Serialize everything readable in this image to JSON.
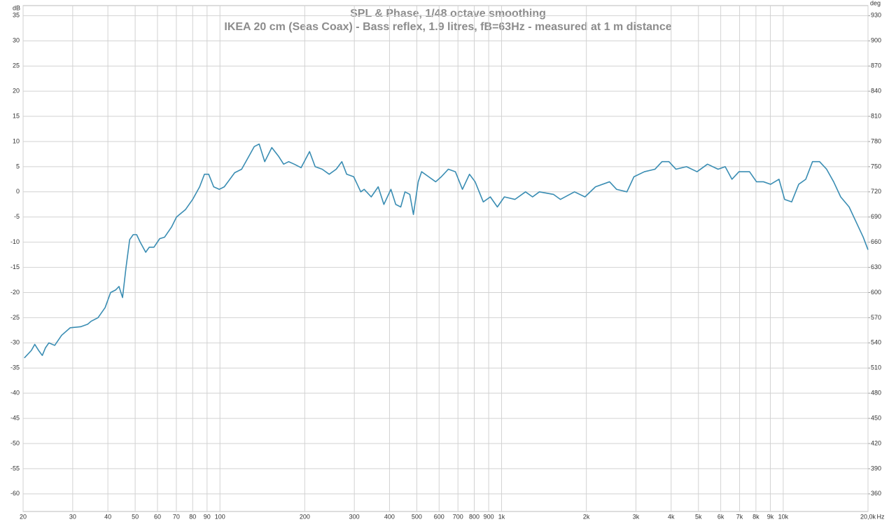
{
  "chart_data": {
    "type": "line",
    "title": "SPL & Phase, 1/48 octave smoothing",
    "subtitle": "IKEA 20 cm (Seas Coax) - Bass reflex, 1.9 litres, fB=63Hz - measured at 1 m distance",
    "y_label": "dB",
    "y2_label": "deg",
    "x_label": "Hz",
    "xscale": "log",
    "grid": true,
    "xlim": [
      20,
      20000
    ],
    "ylim": [
      -63.5,
      37
    ],
    "y2lim": [
      339,
      942
    ],
    "xticks": [
      20,
      30,
      40,
      50,
      60,
      70,
      80,
      90,
      100,
      200,
      300,
      400,
      500,
      600,
      700,
      800,
      900,
      {
        "value": 1000,
        "label": "1k"
      },
      {
        "value": 2000,
        "label": "2k"
      },
      {
        "value": 3000,
        "label": "3k"
      },
      {
        "value": 4000,
        "label": "4k"
      },
      {
        "value": 5000,
        "label": "5k"
      },
      {
        "value": 6000,
        "label": "6k"
      },
      {
        "value": 7000,
        "label": "7k"
      },
      {
        "value": 8000,
        "label": "8k"
      },
      {
        "value": 9000,
        "label": "9k"
      },
      {
        "value": 10000,
        "label": "10k"
      },
      {
        "value": 20000,
        "label": "20,0k"
      }
    ],
    "yticks": [
      -60,
      -55,
      -50,
      -45,
      -40,
      -35,
      -30,
      -25,
      -20,
      -15,
      -10,
      -5,
      0,
      5,
      10,
      15,
      20,
      25,
      30,
      35
    ],
    "y2ticks": [
      360,
      390,
      420,
      450,
      480,
      510,
      540,
      570,
      600,
      630,
      660,
      690,
      720,
      750,
      780,
      810,
      840,
      870,
      900,
      930
    ],
    "x": [
      20.2,
      21.4,
      22.0,
      22.7,
      23.4,
      24.0,
      24.7,
      25.9,
      27.4,
      29.4,
      32.0,
      33.9,
      34.9,
      36.9,
      39.1,
      40.9,
      42.6,
      43.8,
      45.1,
      46.4,
      47.8,
      49.2,
      50.6,
      52.1,
      54.5,
      56.1,
      58.3,
      61.1,
      63.6,
      67.3,
      70.1,
      75.5,
      80.0,
      84.7,
      88.1,
      91.2,
      95.0,
      99.5,
      103.6,
      112.8,
      119.4,
      126.5,
      132.4,
      137.8,
      144.2,
      152.8,
      161.8,
      168.3,
      175.4,
      183.6,
      194.1,
      208.0,
      217.8,
      230.7,
      244.3,
      258.7,
      270.9,
      281.8,
      298.5,
      316.2,
      325.1,
      344.4,
      364.7,
      382.0,
      404.6,
      420.9,
      438.5,
      453.9,
      472.1,
      486.3,
      505.8,
      520.0,
      550.8,
      583.4,
      610.9,
      647.1,
      685.4,
      726.1,
      769.1,
      805.4,
      861,
      912,
      966,
      1023,
      1115,
      1216,
      1288,
      1362,
      1528,
      1618,
      1815,
      1977,
      2155,
      2417,
      2560,
      2786,
      2951,
      3215,
      3506,
      3713,
      3928,
      4159,
      4535,
      4943,
      5383,
      5871,
      6223,
      6577,
      6966,
      7592,
      8038,
      8511,
      9016,
      9661,
      10115,
      10715,
      11350,
      12023,
      12706,
      13459,
      14256,
      15101,
      15996,
      17140,
      18156,
      19231,
      20000
    ],
    "series": [
      {
        "color": "#3a8db3",
        "values": [
          -33,
          -31.5,
          -30.3,
          -31.5,
          -32.5,
          -31,
          -30,
          -30.5,
          -28.5,
          -27,
          -26.8,
          -26.3,
          -25.7,
          -25,
          -23,
          -20,
          -19.5,
          -18.8,
          -21,
          -15,
          -9.5,
          -8.5,
          -8.5,
          -10,
          -12,
          -11,
          -11,
          -9.3,
          -9,
          -7,
          -5,
          -3.5,
          -1.5,
          1,
          3.5,
          3.5,
          1,
          0.5,
          1,
          3.8,
          4.5,
          7,
          9,
          9.5,
          6,
          8.8,
          7,
          5.5,
          6,
          5.5,
          4.8,
          8,
          5,
          4.5,
          3.5,
          4.5,
          6,
          3.5,
          3,
          0,
          0.5,
          -1,
          1,
          -2.5,
          0.5,
          -2.5,
          -3,
          0,
          -0.5,
          -4.5,
          2,
          4,
          3,
          2,
          3,
          4.5,
          4,
          0.5,
          3.5,
          2,
          -2,
          -1,
          -3,
          -1,
          -1.5,
          0,
          -1,
          0,
          -0.5,
          -1.5,
          0,
          -1,
          1,
          2,
          0.5,
          0,
          3,
          4,
          4.5,
          6,
          6,
          4.5,
          5,
          4,
          5.5,
          4.5,
          5,
          2.5,
          4,
          4,
          2,
          2,
          1.5,
          2.5,
          -1.5,
          -2,
          1.5,
          2.5,
          6,
          6,
          4.5,
          2,
          -1,
          -3,
          -6,
          -9,
          -11.5
        ]
      }
    ]
  }
}
